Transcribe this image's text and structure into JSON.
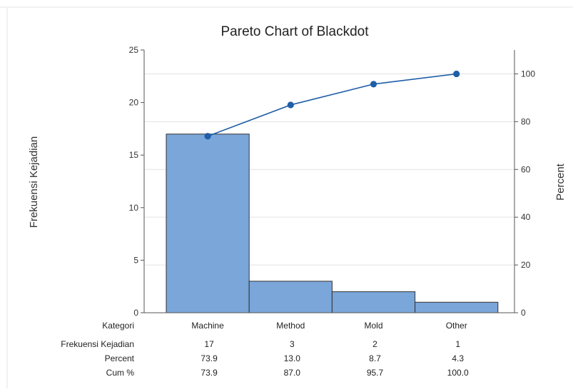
{
  "chart_data": {
    "type": "bar",
    "title": "Pareto Chart of Blackdot",
    "ylabel": "Frekuensi Kejadian",
    "y2label": "Percent",
    "categories": [
      "Machine",
      "Method",
      "Mold",
      "Other"
    ],
    "values": [
      17,
      3,
      2,
      1
    ],
    "cumulative_percent": [
      73.9,
      87.0,
      95.7,
      100.0
    ],
    "ylim": [
      0,
      25
    ],
    "y2lim": [
      0,
      110
    ],
    "yticks": [
      0,
      5,
      10,
      15,
      20,
      25
    ],
    "y2ticks": [
      0,
      20,
      40,
      60,
      80,
      100
    ],
    "grid": true,
    "bar_color": "#7aa6d9",
    "line_color": "#1f5fa8",
    "table": {
      "category_header": "Kategori",
      "rows": [
        {
          "label": "Frekuensi Kejadian",
          "values": [
            "17",
            "3",
            "2",
            "1"
          ]
        },
        {
          "label": "Percent",
          "values": [
            "73.9",
            "13.0",
            "8.7",
            "4.3"
          ]
        },
        {
          "label": "Cum %",
          "values": [
            "73.9",
            "87.0",
            "95.7",
            "100.0"
          ]
        }
      ]
    }
  }
}
